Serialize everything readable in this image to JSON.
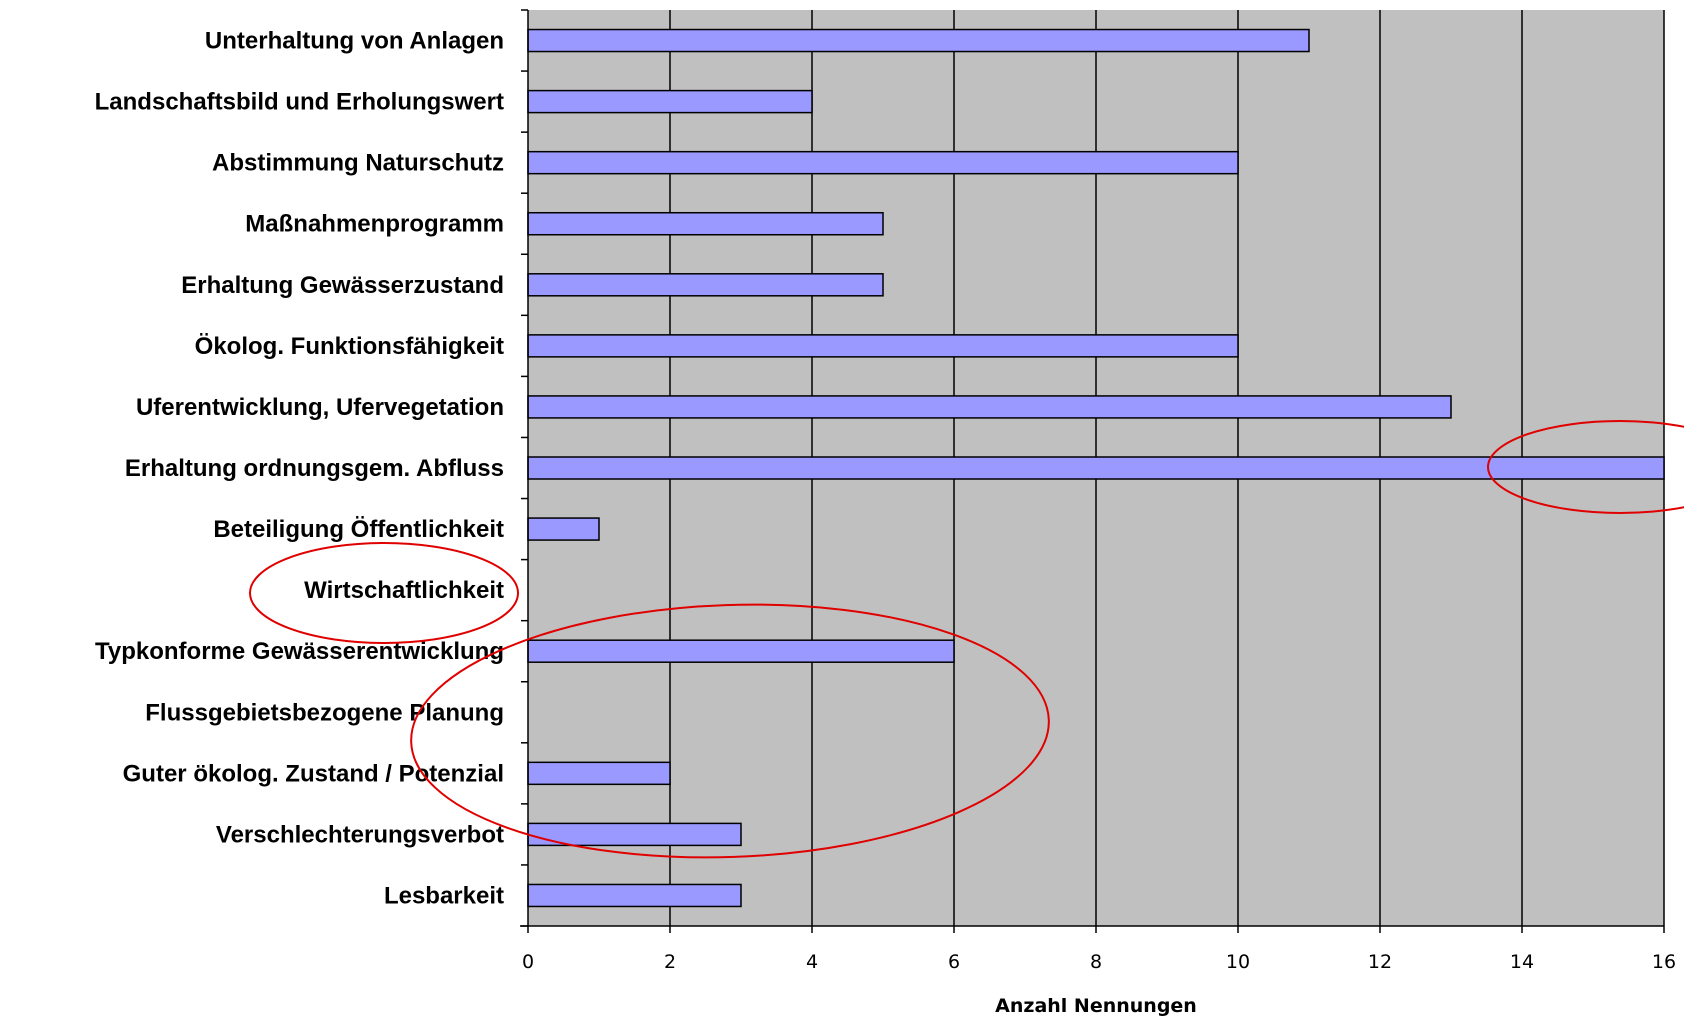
{
  "chart_data": {
    "type": "bar",
    "orientation": "horizontal",
    "categories": [
      "Unterhaltung von Anlagen",
      "Landschaftsbild und Erholungswert",
      "Abstimmung Naturschutz",
      "Maßnahmenprogramm",
      "Erhaltung Gewässerzustand",
      "Ökolog. Funktionsfähigkeit",
      "Uferentwicklung, Ufervegetation",
      "Erhaltung ordnungsgem. Abfluss",
      "Beteiligung Öffentlichkeit",
      "Wirtschaftlichkeit",
      "Typkonforme Gewässerentwicklung",
      "Flussgebietsbezogene Planung",
      "Guter ökolog. Zustand / Potenzial",
      "Verschlechterungsverbot",
      "Lesbarkeit"
    ],
    "values": [
      11,
      4,
      10,
      5,
      5,
      10,
      13,
      16,
      1,
      0,
      6,
      0,
      2,
      3,
      3
    ],
    "title": "",
    "xlabel": "Anzahl Nennungen",
    "ylabel": "",
    "xlim": [
      0,
      16
    ],
    "xticks": [
      "0",
      "2",
      "4",
      "6",
      "8",
      "10",
      "12",
      "14",
      "16"
    ],
    "grid": "vertical major gridlines",
    "legend": "none",
    "colors": {
      "bar_fill": "#9999ff",
      "bar_stroke": "#000000",
      "plot_background": "#c0c0c0",
      "annotation_ellipse": "#e00000"
    },
    "annotations": [
      {
        "type": "ellipse",
        "highlights": "Erhaltung ordnungsgem. Abfluss"
      },
      {
        "type": "ellipse",
        "highlights": "Wirtschaftlichkeit"
      },
      {
        "type": "ellipse",
        "highlights": [
          "Typkonforme Gewässerentwicklung",
          "Flussgebietsbezogene Planung",
          "Guter ökolog. Zustand / Potenzial",
          "Verschlechterungsverbot"
        ]
      }
    ]
  }
}
